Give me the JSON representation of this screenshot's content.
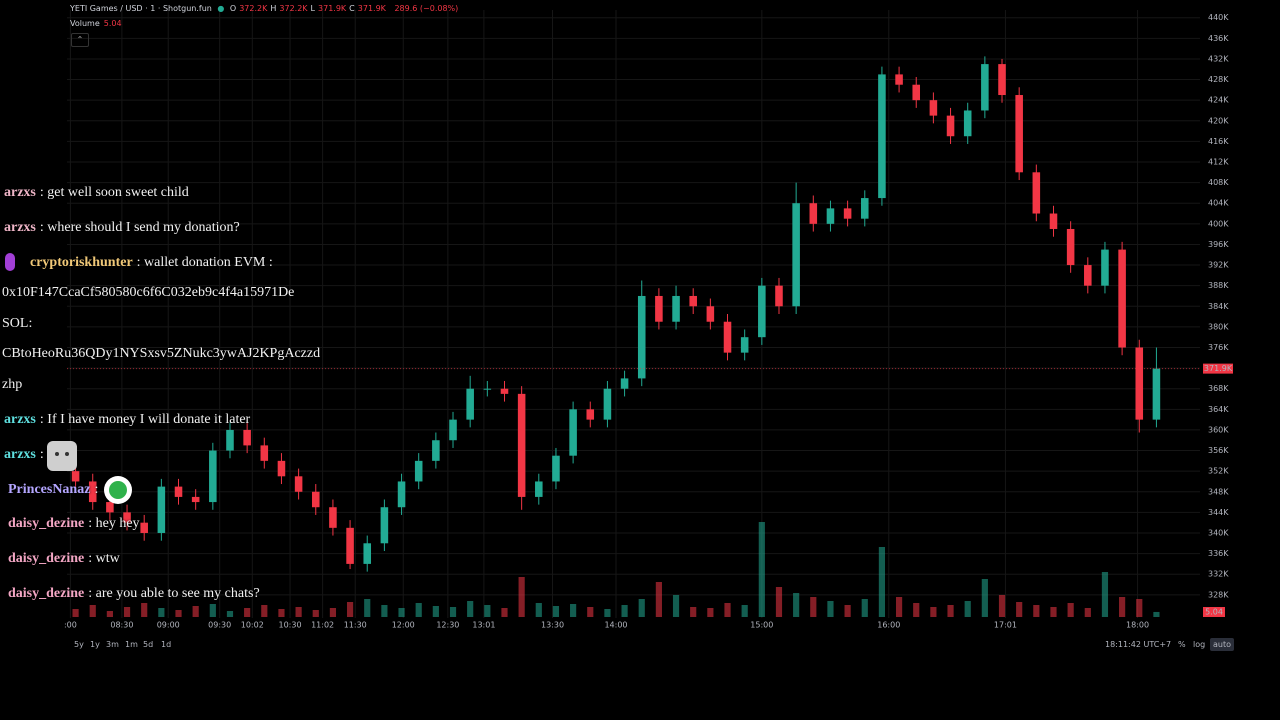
{
  "header": {
    "symbol": "YETI Games / USD · 1 · Shotgun.fun",
    "ohlc": [
      {
        "label": "O",
        "value": "372.2K"
      },
      {
        "label": "H",
        "value": "372.2K"
      },
      {
        "label": "L",
        "value": "371.9K"
      },
      {
        "label": "C",
        "value": "371.9K"
      }
    ],
    "change": "289.6 (−0.08%)",
    "volume_label": "Volume"
  },
  "chart_data": {
    "type": "candlestick",
    "up_color": "#22ab94",
    "down_color": "#f23645",
    "grid": true,
    "xlim": [
      0,
      64
    ],
    "ylim": [
      323.5,
      441.5
    ],
    "vlim": [
      0,
      100
    ],
    "open": [
      352,
      350,
      346,
      344,
      342,
      340,
      349,
      347,
      346,
      356,
      360,
      357,
      354,
      351,
      348,
      345,
      341,
      334,
      338,
      345,
      350,
      354,
      358,
      362,
      368,
      368,
      367,
      347,
      350,
      355,
      364,
      362,
      368,
      370,
      386,
      381,
      386,
      384,
      381,
      375,
      378,
      388,
      384,
      404,
      400,
      403,
      401,
      405,
      429,
      427,
      424,
      421,
      417,
      422,
      431,
      425,
      410,
      402,
      399,
      392,
      388,
      395,
      376,
      362
    ],
    "high": [
      353.5,
      351.5,
      347.5,
      345.5,
      343.5,
      350.5,
      350.5,
      348.5,
      357.5,
      361.5,
      361.5,
      358.5,
      355.5,
      352.5,
      349.5,
      346.5,
      342.5,
      339.5,
      346.5,
      351.5,
      355.5,
      359.5,
      363.5,
      370.5,
      369.5,
      369.5,
      368.5,
      351.5,
      356.5,
      365.5,
      365.5,
      369.5,
      371.5,
      389,
      387.5,
      388,
      387.5,
      385.5,
      382.5,
      379.5,
      389.5,
      389.5,
      408,
      405.5,
      404.5,
      404.5,
      406.5,
      430.5,
      430.5,
      428.5,
      425.5,
      422.5,
      423.5,
      432.5,
      432,
      426.5,
      411.5,
      403.5,
      400.5,
      393.5,
      396.5,
      396.5,
      377.5,
      376
    ],
    "low": [
      348.5,
      344.5,
      342.5,
      340.5,
      338.5,
      338.5,
      345.5,
      344.5,
      344.5,
      354.5,
      355.5,
      352.5,
      349.5,
      346.5,
      343.5,
      339.5,
      333,
      332.5,
      336.5,
      343.5,
      348.5,
      352.5,
      356.5,
      360.5,
      366.5,
      365.5,
      344.5,
      345.5,
      348.5,
      353.5,
      360.5,
      360.5,
      366.5,
      368.5,
      379.5,
      379.5,
      382.5,
      379.5,
      373.5,
      373.5,
      376.5,
      382.5,
      382.5,
      398.5,
      398.5,
      399.5,
      399.5,
      403.5,
      425.5,
      422.5,
      419.5,
      415.5,
      415.5,
      420.5,
      423.5,
      408.5,
      400.5,
      397.5,
      390.5,
      386.5,
      386.5,
      374.5,
      359.5,
      360.5
    ],
    "close": [
      350,
      346,
      344,
      342,
      340,
      349,
      347,
      346,
      356,
      360,
      357,
      354,
      351,
      348,
      345,
      341,
      334,
      338,
      345,
      350,
      354,
      358,
      362,
      368,
      368,
      367,
      347,
      350,
      355,
      364,
      362,
      368,
      370,
      386,
      381,
      386,
      384,
      381,
      375,
      378,
      388,
      384,
      404,
      400,
      403,
      401,
      405,
      429,
      427,
      424,
      421,
      417,
      422,
      431,
      425,
      410,
      402,
      399,
      392,
      388,
      395,
      376,
      362,
      371.9
    ],
    "volume": [
      8,
      12,
      6,
      10,
      14,
      9,
      7,
      11,
      13,
      6,
      9,
      12,
      8,
      10,
      7,
      9,
      15,
      18,
      12,
      9,
      14,
      11,
      10,
      16,
      12,
      9,
      40,
      14,
      11,
      13,
      10,
      8,
      12,
      18,
      35,
      22,
      10,
      9,
      14,
      12,
      95,
      30,
      24,
      20,
      16,
      12,
      18,
      70,
      20,
      14,
      10,
      12,
      16,
      38,
      22,
      15,
      12,
      10,
      14,
      9,
      45,
      20,
      18,
      5.04
    ],
    "last_price": 371.9,
    "last_price_label": "371.9K",
    "yticks": [
      {
        "value": 328,
        "label": "328K"
      },
      {
        "value": 332,
        "label": "332K"
      },
      {
        "value": 336,
        "label": "336K"
      },
      {
        "value": 340,
        "label": "340K"
      },
      {
        "value": 344,
        "label": "344K"
      },
      {
        "value": 348,
        "label": "348K"
      },
      {
        "value": 352,
        "label": "352K"
      },
      {
        "value": 356,
        "label": "356K"
      },
      {
        "value": 360,
        "label": "360K"
      },
      {
        "value": 364,
        "label": "364K"
      },
      {
        "value": 368,
        "label": "368K"
      },
      {
        "value": 372,
        "label": "372K"
      },
      {
        "value": 376,
        "label": "376K"
      },
      {
        "value": 380,
        "label": "380K"
      },
      {
        "value": 384,
        "label": "384K"
      },
      {
        "value": 388,
        "label": "388K"
      },
      {
        "value": 392,
        "label": "392K"
      },
      {
        "value": 396,
        "label": "396K"
      },
      {
        "value": 400,
        "label": "400K"
      },
      {
        "value": 404,
        "label": "404K"
      },
      {
        "value": 408,
        "label": "408K"
      },
      {
        "value": 412,
        "label": "412K"
      },
      {
        "value": 416,
        "label": "416K"
      },
      {
        "value": 420,
        "label": "420K"
      },
      {
        "value": 424,
        "label": "424K"
      },
      {
        "value": 428,
        "label": "428K"
      },
      {
        "value": 432,
        "label": "432K"
      },
      {
        "value": 436,
        "label": "436K"
      },
      {
        "value": 440,
        "label": "440K"
      }
    ],
    "xticks": [
      {
        "value": 0.2,
        "label": ":00"
      },
      {
        "value": 3.2,
        "label": "08:30"
      },
      {
        "value": 5.9,
        "label": "09:00"
      },
      {
        "value": 8.9,
        "label": "09:30"
      },
      {
        "value": 10.8,
        "label": "10:02"
      },
      {
        "value": 13,
        "label": "10:30"
      },
      {
        "value": 14.9,
        "label": "11:02"
      },
      {
        "value": 16.8,
        "label": "11:30"
      },
      {
        "value": 19.6,
        "label": "12:00"
      },
      {
        "value": 22.2,
        "label": "12:30"
      },
      {
        "value": 24.3,
        "label": "13:01"
      },
      {
        "value": 28.3,
        "label": "13:30"
      },
      {
        "value": 32,
        "label": "14:00"
      },
      {
        "value": 40.5,
        "label": "15:00"
      },
      {
        "value": 47.9,
        "label": "16:00"
      },
      {
        "value": 54.7,
        "label": "17:01"
      },
      {
        "value": 62.4,
        "label": "18:00"
      }
    ]
  },
  "chat": {
    "messages": [
      {
        "user": "arzxs",
        "text": ": get well soon sweet child"
      },
      {
        "user": "arzxs",
        "text": ": where should I send my donation?"
      },
      {
        "user": "cryptoriskhunter",
        "text": ": wallet donation EVM :"
      },
      {
        "text": "0x10F147CcaCf580580c6f6C032eb9c4f4a15971De"
      },
      {
        "text": "SOL:"
      },
      {
        "text": "CBtoHeoRu36QDy1NYSxsv5ZNukc3ywAJ2KPgAczzd"
      },
      {
        "text": "zhp"
      },
      {
        "user": "arzxs",
        "text": ": If I have money I will donate it later"
      },
      {
        "user": "arzxs",
        "text": ":"
      },
      {
        "user": "PrincesNanaz",
        "text": ":"
      },
      {
        "user": "daisy_dezine",
        "text": ": hey hey"
      },
      {
        "user": "daisy_dezine",
        "text": ": wtw"
      },
      {
        "user": "daisy_dezine",
        "text": ": are you able to see my chats?"
      }
    ]
  },
  "toolbar": {
    "ranges": [
      "5y",
      "1y",
      "3m",
      "1m",
      "5d",
      "1d"
    ],
    "clock": "18:11:42 UTC+7",
    "percent": "%",
    "log": "log",
    "auto": "auto"
  }
}
